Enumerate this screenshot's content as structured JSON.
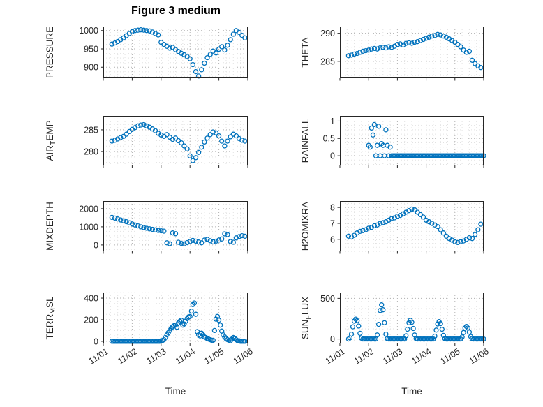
{
  "figure": {
    "title": "Figure 3 medium",
    "xlabel": "Time",
    "marker_color": "#0072BD",
    "axis_color": "#262626",
    "xlim": [
      0,
      5
    ],
    "x_unit": "days since 11/01",
    "xtick_values": [
      0,
      1,
      2,
      3,
      4,
      5
    ],
    "xtick_labels": [
      "11/01",
      "11/02",
      "11/03",
      "11/04",
      "11/05",
      "11/06"
    ],
    "grid": "major and minor dotted grid on",
    "layout": "4x2 subplots, scatter (hollow circle markers), x tick labels rotated on bottom row only"
  },
  "chart_data": [
    {
      "type": "scatter",
      "name": "PRESSURE",
      "ylabel_parts": {
        "pre": "PRESSURE",
        "sub": "",
        "post": ""
      },
      "yticks": [
        900,
        950,
        1000
      ],
      "ylim": [
        870,
        1011
      ],
      "x": [
        0.3,
        0.4,
        0.5,
        0.6,
        0.7,
        0.8,
        0.9,
        1,
        1.1,
        1.2,
        1.3,
        1.4,
        1.5,
        1.6,
        1.7,
        1.8,
        1.9,
        2,
        2.1,
        2.2,
        2.3,
        2.4,
        2.5,
        2.6,
        2.7,
        2.8,
        2.9,
        3,
        3.1,
        3.2,
        3.3,
        3.4,
        3.5,
        3.6,
        3.7,
        3.8,
        3.9,
        4,
        4.1,
        4.2,
        4.3,
        4.4,
        4.5,
        4.6,
        4.7,
        4.8,
        4.9
      ],
      "y": [
        963,
        966,
        970,
        975,
        980,
        986,
        992,
        997,
        1000,
        1001,
        1002,
        1001,
        1000,
        999,
        996,
        992,
        988,
        968,
        962,
        957,
        952,
        954,
        948,
        943,
        938,
        934,
        929,
        923,
        907,
        888,
        876,
        893,
        911,
        926,
        935,
        944,
        939,
        949,
        956,
        947,
        960,
        975,
        990,
        1000,
        995,
        987,
        980
      ]
    },
    {
      "type": "scatter",
      "name": "THETA",
      "ylabel_parts": {
        "pre": "THETA",
        "sub": "",
        "post": ""
      },
      "yticks": [
        285,
        290
      ],
      "ylim": [
        282,
        291.2
      ],
      "x": [
        0.3,
        0.4,
        0.5,
        0.6,
        0.7,
        0.8,
        0.9,
        1,
        1.1,
        1.2,
        1.3,
        1.4,
        1.5,
        1.6,
        1.7,
        1.8,
        1.9,
        2,
        2.1,
        2.2,
        2.3,
        2.4,
        2.5,
        2.6,
        2.7,
        2.8,
        2.9,
        3,
        3.1,
        3.2,
        3.3,
        3.4,
        3.5,
        3.6,
        3.7,
        3.8,
        3.9,
        4,
        4.1,
        4.2,
        4.3,
        4.4,
        4.5,
        4.6,
        4.7,
        4.8,
        4.9
      ],
      "y": [
        286.0,
        286.1,
        286.3,
        286.4,
        286.6,
        286.8,
        286.9,
        287.0,
        287.2,
        287.3,
        287.2,
        287.4,
        287.5,
        287.4,
        287.6,
        287.5,
        287.7,
        288.0,
        288.1,
        287.9,
        288.2,
        288.3,
        288.2,
        288.4,
        288.5,
        288.7,
        288.9,
        289.1,
        289.3,
        289.5,
        289.6,
        289.8,
        289.7,
        289.5,
        289.3,
        289.0,
        288.7,
        288.4,
        288.0,
        287.6,
        287.0,
        286.6,
        286.8,
        285.2,
        284.6,
        284.2,
        283.9
      ]
    },
    {
      "type": "scatter",
      "name": "AIR_TEMP",
      "ylabel_parts": {
        "pre": "AIR",
        "sub": "T",
        "post": "EMP"
      },
      "yticks": [
        280,
        285
      ],
      "ylim": [
        276.8,
        288.2
      ],
      "x": [
        0.3,
        0.4,
        0.5,
        0.6,
        0.7,
        0.8,
        0.9,
        1,
        1.1,
        1.2,
        1.3,
        1.4,
        1.5,
        1.6,
        1.7,
        1.8,
        1.9,
        2,
        2.1,
        2.2,
        2.3,
        2.4,
        2.5,
        2.6,
        2.7,
        2.8,
        2.9,
        3,
        3.1,
        3.2,
        3.3,
        3.4,
        3.5,
        3.6,
        3.7,
        3.8,
        3.9,
        4,
        4.1,
        4.2,
        4.3,
        4.4,
        4.5,
        4.6,
        4.7,
        4.8,
        4.9
      ],
      "y": [
        282.4,
        282.6,
        282.9,
        283.2,
        283.5,
        284.0,
        284.6,
        285.1,
        285.5,
        285.9,
        286.1,
        286.2,
        285.9,
        285.6,
        285.2,
        284.8,
        284.2,
        283.8,
        283.5,
        283.9,
        283.3,
        282.8,
        283.1,
        282.5,
        282.0,
        281.3,
        280.6,
        279.0,
        277.9,
        278.6,
        279.8,
        281.0,
        282.2,
        283.1,
        283.9,
        284.5,
        284.3,
        283.6,
        282.4,
        281.3,
        282.4,
        283.4,
        284.0,
        283.6,
        283.0,
        282.6,
        282.4
      ]
    },
    {
      "type": "scatter",
      "name": "RAINFALL",
      "ylabel_parts": {
        "pre": "RAINFALL",
        "sub": "",
        "post": ""
      },
      "yticks": [
        0,
        0.5,
        1
      ],
      "ylim": [
        -0.28,
        1.15
      ],
      "x": [
        1,
        1.05,
        1.1,
        1.15,
        1.2,
        1.25,
        1.3,
        1.35,
        1.4,
        1.45,
        1.5,
        1.55,
        1.6,
        1.65,
        1.7,
        1.75,
        1.8,
        1.85,
        1.9,
        1.95,
        2,
        2.05,
        2.1,
        2.15,
        2.2,
        2.25,
        2.3,
        2.35,
        2.4,
        2.45,
        2.5,
        2.55,
        2.6,
        2.65,
        2.7,
        2.75,
        2.8,
        2.85,
        2.9,
        2.95,
        3,
        3.05,
        3.1,
        3.15,
        3.2,
        3.25,
        3.3,
        3.35,
        3.4,
        3.45,
        3.5,
        3.55,
        3.6,
        3.65,
        3.7,
        3.75,
        3.8,
        3.85,
        3.9,
        3.95,
        4,
        4.05,
        4.1,
        4.15,
        4.2,
        4.25,
        4.3,
        4.35,
        4.4,
        4.45,
        4.5,
        4.55,
        4.6,
        4.65,
        4.7,
        4.75,
        4.8,
        4.85,
        4.9,
        4.95,
        5
      ],
      "y": [
        0.3,
        0.25,
        0.8,
        0.6,
        0.9,
        0,
        0.3,
        0.85,
        0,
        0.35,
        0.3,
        0,
        0.75,
        0.3,
        0,
        0.25,
        0,
        0,
        0,
        0,
        0,
        0,
        0,
        0,
        0,
        0,
        0,
        0,
        0,
        0,
        0,
        0,
        0,
        0,
        0,
        0,
        0,
        0,
        0,
        0,
        0,
        0,
        0,
        0,
        0,
        0,
        0,
        0,
        0,
        0,
        0,
        0,
        0,
        0,
        0,
        0,
        0,
        0,
        0,
        0,
        0,
        0,
        0,
        0,
        0,
        0,
        0,
        0,
        0,
        0,
        0,
        0,
        0,
        0,
        0,
        0,
        0,
        0,
        0,
        0,
        0
      ]
    },
    {
      "type": "scatter",
      "name": "MIXDEPTH",
      "ylabel_parts": {
        "pre": "MIXDEPTH",
        "sub": "",
        "post": ""
      },
      "yticks": [
        0,
        1000,
        2000
      ],
      "ylim": [
        -350,
        2420
      ],
      "x": [
        0.3,
        0.4,
        0.5,
        0.6,
        0.7,
        0.8,
        0.9,
        1,
        1.1,
        1.2,
        1.3,
        1.4,
        1.5,
        1.6,
        1.7,
        1.8,
        1.9,
        2,
        2.1,
        2.2,
        2.3,
        2.4,
        2.5,
        2.6,
        2.7,
        2.8,
        2.9,
        3,
        3.1,
        3.2,
        3.3,
        3.4,
        3.5,
        3.6,
        3.7,
        3.8,
        3.9,
        4,
        4.1,
        4.2,
        4.3,
        4.4,
        4.5,
        4.6,
        4.7,
        4.8,
        4.9
      ],
      "y": [
        1520,
        1480,
        1430,
        1380,
        1330,
        1280,
        1220,
        1160,
        1100,
        1050,
        1000,
        960,
        920,
        890,
        860,
        830,
        800,
        780,
        760,
        120,
        70,
        660,
        620,
        150,
        90,
        60,
        130,
        190,
        250,
        210,
        160,
        120,
        270,
        310,
        230,
        170,
        210,
        270,
        330,
        610,
        570,
        190,
        150,
        390,
        460,
        510,
        480
      ]
    },
    {
      "type": "scatter",
      "name": "H2OMIXRA",
      "ylabel_parts": {
        "pre": "H2OMIXRA",
        "sub": "",
        "post": ""
      },
      "yticks": [
        6,
        7,
        8
      ],
      "ylim": [
        5.25,
        8.4
      ],
      "x": [
        0.3,
        0.4,
        0.5,
        0.6,
        0.7,
        0.8,
        0.9,
        1,
        1.1,
        1.2,
        1.3,
        1.4,
        1.5,
        1.6,
        1.7,
        1.8,
        1.9,
        2,
        2.1,
        2.2,
        2.3,
        2.4,
        2.5,
        2.6,
        2.7,
        2.8,
        2.9,
        3,
        3.1,
        3.2,
        3.3,
        3.4,
        3.5,
        3.6,
        3.7,
        3.8,
        3.9,
        4,
        4.1,
        4.2,
        4.3,
        4.4,
        4.5,
        4.6,
        4.7,
        4.8,
        4.9
      ],
      "y": [
        6.2,
        6.15,
        6.25,
        6.4,
        6.5,
        6.55,
        6.6,
        6.7,
        6.75,
        6.85,
        6.9,
        7.0,
        7.05,
        7.1,
        7.2,
        7.3,
        7.35,
        7.45,
        7.5,
        7.6,
        7.7,
        7.8,
        7.9,
        7.85,
        7.7,
        7.55,
        7.4,
        7.2,
        7.1,
        7.0,
        6.9,
        6.8,
        6.6,
        6.4,
        6.2,
        6.05,
        5.95,
        5.85,
        5.8,
        5.85,
        5.9,
        6.0,
        6.1,
        6.05,
        6.3,
        6.6,
        6.95
      ]
    },
    {
      "type": "scatter",
      "name": "TERR_MSL",
      "ylabel_parts": {
        "pre": "TERR",
        "sub": "M",
        "post": "SL"
      },
      "yticks": [
        0,
        200,
        400
      ],
      "ylim": [
        -20,
        452
      ],
      "x": [
        0.3,
        0.35,
        0.4,
        0.45,
        0.5,
        0.55,
        0.6,
        0.65,
        0.7,
        0.75,
        0.8,
        0.85,
        0.9,
        0.95,
        1,
        1.05,
        1.1,
        1.15,
        1.2,
        1.25,
        1.3,
        1.35,
        1.4,
        1.45,
        1.5,
        1.55,
        1.6,
        1.65,
        1.7,
        1.75,
        1.8,
        1.85,
        1.9,
        1.95,
        2,
        2.05,
        2.1,
        2.15,
        2.2,
        2.25,
        2.3,
        2.35,
        2.4,
        2.45,
        2.5,
        2.55,
        2.6,
        2.65,
        2.7,
        2.75,
        2.8,
        2.85,
        2.9,
        2.95,
        3,
        3.05,
        3.1,
        3.15,
        3.2,
        3.25,
        3.3,
        3.35,
        3.4,
        3.45,
        3.5,
        3.55,
        3.6,
        3.65,
        3.7,
        3.75,
        3.8,
        3.85,
        3.9,
        3.95,
        4,
        4.05,
        4.1,
        4.15,
        4.2,
        4.25,
        4.3,
        4.35,
        4.4,
        4.45,
        4.5,
        4.55,
        4.6,
        4.65,
        4.7,
        4.75,
        4.8,
        4.85,
        4.9
      ],
      "y": [
        0,
        0,
        0,
        0,
        0,
        0,
        0,
        0,
        0,
        0,
        0,
        0,
        0,
        0,
        0,
        0,
        0,
        0,
        0,
        0,
        0,
        0,
        0,
        0,
        0,
        0,
        0,
        0,
        0,
        0,
        0,
        0,
        0,
        0,
        5,
        8,
        15,
        35,
        60,
        80,
        100,
        120,
        135,
        145,
        150,
        130,
        170,
        185,
        195,
        150,
        160,
        185,
        210,
        225,
        230,
        280,
        340,
        355,
        250,
        90,
        60,
        50,
        75,
        60,
        40,
        35,
        25,
        20,
        15,
        10,
        10,
        100,
        205,
        230,
        195,
        150,
        95,
        60,
        40,
        25,
        15,
        10,
        5,
        20,
        35,
        25,
        15,
        5,
        5,
        0,
        0,
        0,
        0
      ]
    },
    {
      "type": "scatter",
      "name": "SUN_FLUX",
      "ylabel_parts": {
        "pre": "SUN",
        "sub": "F",
        "post": "LUX"
      },
      "yticks": [
        0,
        500
      ],
      "ylim": [
        -55,
        572
      ],
      "x": [
        0.3,
        0.35,
        0.4,
        0.45,
        0.5,
        0.55,
        0.6,
        0.65,
        0.7,
        0.75,
        0.8,
        0.85,
        0.9,
        0.95,
        1,
        1.05,
        1.1,
        1.15,
        1.2,
        1.25,
        1.3,
        1.35,
        1.4,
        1.45,
        1.5,
        1.55,
        1.6,
        1.65,
        1.7,
        1.75,
        1.8,
        1.85,
        1.9,
        1.95,
        2,
        2.05,
        2.1,
        2.15,
        2.2,
        2.25,
        2.3,
        2.35,
        2.4,
        2.45,
        2.5,
        2.55,
        2.6,
        2.65,
        2.7,
        2.75,
        2.8,
        2.85,
        2.9,
        2.95,
        3,
        3.05,
        3.1,
        3.15,
        3.2,
        3.25,
        3.3,
        3.35,
        3.4,
        3.45,
        3.5,
        3.55,
        3.6,
        3.65,
        3.7,
        3.75,
        3.8,
        3.85,
        3.9,
        3.95,
        4,
        4.05,
        4.1,
        4.15,
        4.2,
        4.25,
        4.3,
        4.35,
        4.4,
        4.45,
        4.5,
        4.55,
        4.6,
        4.65,
        4.7,
        4.75,
        4.8,
        4.85,
        4.9,
        4.95,
        5
      ],
      "y": [
        0,
        15,
        60,
        150,
        220,
        245,
        225,
        160,
        70,
        10,
        0,
        0,
        0,
        0,
        0,
        0,
        0,
        0,
        0,
        0,
        50,
        180,
        350,
        420,
        360,
        200,
        60,
        5,
        0,
        0,
        0,
        0,
        0,
        0,
        0,
        0,
        0,
        0,
        0,
        0,
        40,
        120,
        200,
        230,
        205,
        130,
        50,
        5,
        0,
        0,
        0,
        0,
        0,
        0,
        0,
        0,
        0,
        0,
        0,
        0,
        35,
        110,
        185,
        215,
        190,
        120,
        45,
        5,
        0,
        0,
        0,
        0,
        0,
        0,
        0,
        0,
        0,
        0,
        0,
        25,
        80,
        135,
        155,
        135,
        85,
        30,
        5,
        0,
        0,
        0,
        0,
        0,
        0,
        0,
        0
      ]
    }
  ]
}
